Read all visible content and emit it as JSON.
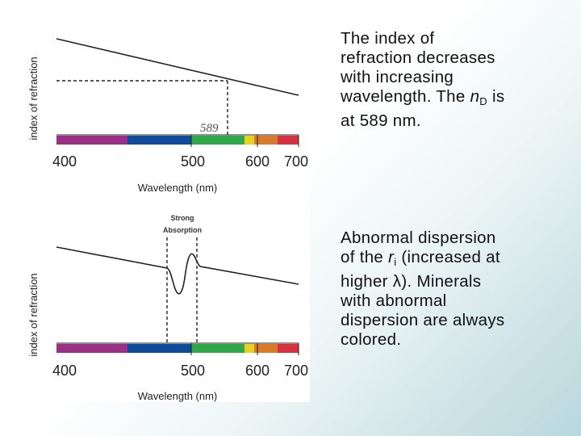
{
  "figure": {
    "top": {
      "y_axis_label": "index of refraction",
      "x_axis_label": "Wavelength (nm)",
      "x_ticks": [
        "400",
        "500",
        "600",
        "700"
      ],
      "annotation": "589"
    },
    "bottom": {
      "y_axis_label": "index of refraction",
      "x_axis_label": "Wavelength (nm)",
      "x_ticks": [
        "400",
        "500",
        "600",
        "700"
      ],
      "annotation_line1": "Strong",
      "annotation_line2": "Absorption"
    },
    "spectrum_colors": [
      "#9b2f86",
      "#0e4c9b",
      "#2fa84a",
      "#e7d21f",
      "#d87a2a",
      "#d7303f"
    ]
  },
  "text": {
    "para1": {
      "line1": "The index of",
      "line2": "refraction decreases",
      "line3": "with increasing",
      "line4_prefix": "wavelength.  The ",
      "line4_italic": "n",
      "line4_sub": "D",
      "line4_suffix": " is",
      "line5": "at 589 nm."
    },
    "para2": {
      "line1": "Abnormal dispersion",
      "line2_prefix": "of the ",
      "line2_italic": "r",
      "line2_sub": "i",
      "line2_suffix": " (increased at",
      "line3_prefix": "higher ",
      "line3_symbol": "λ",
      "line3_suffix": ").  Minerals",
      "line4": "with abnormal",
      "line5": "dispersion are always",
      "line6": "colored."
    }
  }
}
